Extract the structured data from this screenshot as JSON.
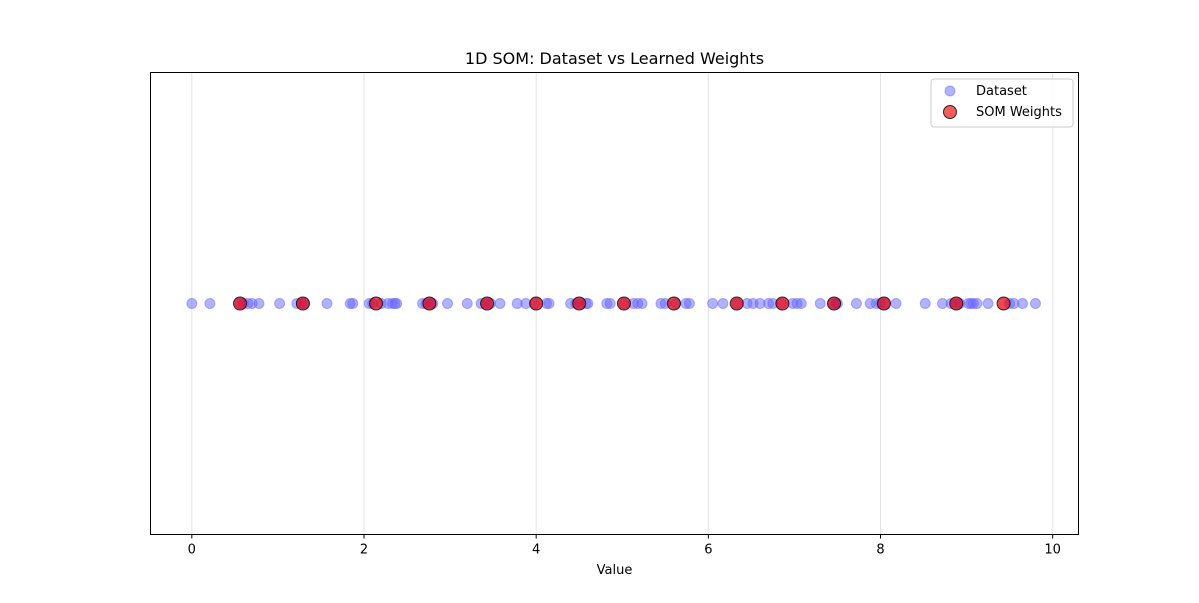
{
  "chart_data": {
    "type": "scatter",
    "title": "1D SOM: Dataset vs Learned Weights",
    "xlabel": "Value",
    "ylabel": "",
    "xlim": [
      -0.48,
      10.3
    ],
    "ylim": [
      -1,
      1
    ],
    "xticks": [
      0,
      2,
      4,
      6,
      8,
      10
    ],
    "grid": "x-axis only",
    "legend_position": "top-right",
    "series": [
      {
        "name": "Dataset",
        "color": "#6666ff",
        "values": [
          0.0,
          0.21,
          0.56,
          0.6,
          0.65,
          0.7,
          0.78,
          1.02,
          1.22,
          1.28,
          1.31,
          1.57,
          1.84,
          1.87,
          2.06,
          2.1,
          2.2,
          2.28,
          2.33,
          2.36,
          2.38,
          2.68,
          2.72,
          2.77,
          2.8,
          2.97,
          3.2,
          3.36,
          3.42,
          3.47,
          3.58,
          3.78,
          3.88,
          3.99,
          4.12,
          4.15,
          4.4,
          4.46,
          4.52,
          4.58,
          4.6,
          4.82,
          4.86,
          5.02,
          5.13,
          5.18,
          5.23,
          5.45,
          5.5,
          5.62,
          5.74,
          5.78,
          6.05,
          6.17,
          6.33,
          6.45,
          6.52,
          6.6,
          6.7,
          6.75,
          6.85,
          6.98,
          7.03,
          7.08,
          7.3,
          7.45,
          7.48,
          7.5,
          7.72,
          7.88,
          7.95,
          8.0,
          8.05,
          8.18,
          8.52,
          8.72,
          8.82,
          8.88,
          8.92,
          9.02,
          9.05,
          9.08,
          9.12,
          9.25,
          9.5,
          9.55,
          9.65,
          9.8
        ]
      },
      {
        "name": "SOM Weights",
        "color": "#e8000b",
        "values": [
          0.56,
          1.29,
          2.14,
          2.76,
          3.43,
          4.0,
          4.5,
          5.02,
          5.6,
          6.33,
          6.86,
          7.46,
          8.04,
          8.88,
          9.43
        ]
      }
    ]
  }
}
